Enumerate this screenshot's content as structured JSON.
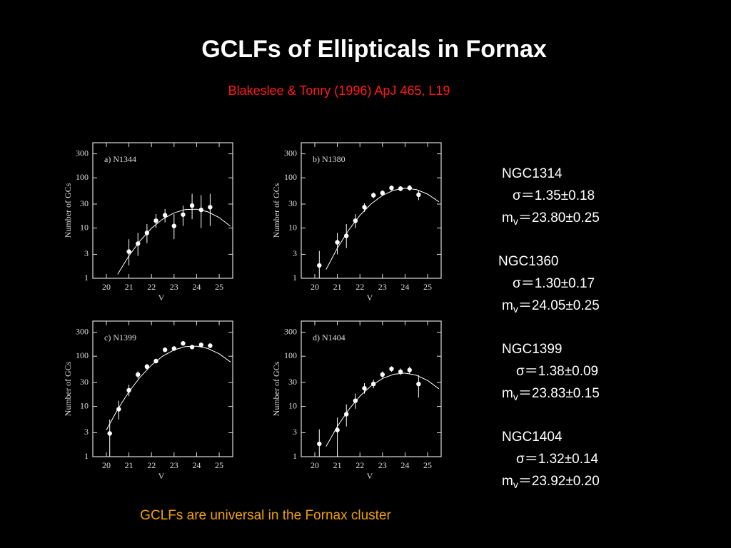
{
  "slide": {
    "title": "GCLFs of Ellipticals in Fornax",
    "citation": "Blakeslee & Tonry (1996) ApJ 465, L19",
    "footer": "GCLFs are universal in the Fornax cluster",
    "stats": [
      {
        "name": "NGC1314",
        "sigma": "σ＝1.35±0.18",
        "m_label": "m",
        "m_sub": "v",
        "m_value": "＝23.80±0.25"
      },
      {
        "name": "NGC1360",
        "sigma": "σ＝1.30±0.17",
        "m_label": "m",
        "m_sub": "v",
        "m_value": "＝24.05±0.25"
      },
      {
        "name": "NGC1399",
        "sigma": "σ＝1.38±0.09",
        "m_label": "m",
        "m_sub": "v",
        "m_value": "＝23.83±0.15"
      },
      {
        "name": "NGC1404",
        "sigma": "σ＝1.32±0.14",
        "m_label": "m",
        "m_sub": "v",
        "m_value": "＝23.92±0.20"
      }
    ]
  },
  "chart_data": [
    {
      "type": "scatter",
      "title": "a) N1344",
      "x_label": "V",
      "y_label": "Number of GCs",
      "color": "#ffffff",
      "xlim": [
        19.4,
        25.6
      ],
      "ylim": [
        1,
        500
      ],
      "yscale": "log",
      "xticks": [
        20,
        21,
        22,
        23,
        24,
        25
      ],
      "yticks": [
        1,
        3,
        10,
        30,
        100,
        300
      ],
      "x": [
        21.0,
        21.4,
        21.8,
        22.2,
        22.6,
        23.0,
        23.4,
        23.8,
        24.2,
        24.6
      ],
      "values": [
        3.4,
        4.9,
        8,
        14,
        18,
        11,
        18.5,
        28,
        23,
        26
      ],
      "ylow": [
        1.8,
        2.8,
        5,
        10,
        13,
        6,
        11,
        15,
        10,
        11
      ],
      "yhigh": [
        6,
        8,
        12,
        19,
        24,
        19,
        28,
        48,
        45,
        48
      ],
      "fit": {
        "x": [
          20.5,
          21,
          21.5,
          22,
          22.5,
          23,
          23.5,
          24,
          24.5,
          25,
          25.5
        ],
        "values": [
          1.2,
          2.8,
          5.6,
          9.9,
          15.1,
          20.1,
          23.4,
          23.7,
          21.0,
          16.2,
          10.9
        ]
      }
    },
    {
      "type": "scatter",
      "title": "b) N1380",
      "x_label": "V",
      "y_label": "Number of GCs",
      "color": "#ffffff",
      "xlim": [
        19.4,
        25.6
      ],
      "ylim": [
        1,
        500
      ],
      "yscale": "log",
      "xticks": [
        20,
        21,
        22,
        23,
        24,
        25
      ],
      "yticks": [
        1,
        3,
        10,
        30,
        100,
        300
      ],
      "x": [
        20.2,
        21.0,
        21.4,
        21.8,
        22.2,
        22.6,
        23.0,
        23.4,
        23.8,
        24.2,
        24.6
      ],
      "values": [
        1.8,
        5.2,
        7,
        14,
        26,
        45,
        50,
        63,
        61,
        63,
        46
      ],
      "ylow": [
        0.9,
        3,
        4,
        10,
        21,
        39,
        44,
        56,
        54,
        56,
        36
      ],
      "yhigh": [
        3.5,
        8,
        12,
        19,
        31,
        51,
        57,
        70,
        68,
        72,
        55
      ],
      "fit": {
        "x": [
          20.5,
          21,
          21.5,
          22,
          22.5,
          23,
          23.5,
          24,
          24.5,
          25,
          25.5
        ],
        "values": [
          1.5,
          4.0,
          9.1,
          17.9,
          30.4,
          44.8,
          56.7,
          62.0,
          58.4,
          47.5,
          33.3
        ]
      }
    },
    {
      "type": "scatter",
      "title": "c) N1399",
      "x_label": "V",
      "y_label": "Number of GCs",
      "color": "#ffffff",
      "xlim": [
        19.4,
        25.6
      ],
      "ylim": [
        1,
        500
      ],
      "yscale": "log",
      "xticks": [
        20,
        21,
        22,
        23,
        24,
        25
      ],
      "yticks": [
        1,
        3,
        10,
        30,
        100,
        300
      ],
      "x": [
        20.15,
        20.55,
        21.0,
        21.4,
        21.8,
        22.2,
        22.6,
        23.0,
        23.4,
        23.8,
        24.2,
        24.6
      ],
      "values": [
        2.9,
        8.8,
        21,
        43,
        62,
        80,
        134,
        142,
        180,
        152,
        168,
        162
      ],
      "ylow": [
        1,
        5.5,
        16,
        36,
        54,
        72,
        122,
        130,
        165,
        138,
        150,
        145
      ],
      "yhigh": [
        5.5,
        13,
        27,
        50,
        70,
        90,
        146,
        156,
        196,
        166,
        186,
        180
      ],
      "fit": {
        "x": [
          20,
          20.5,
          21,
          21.5,
          22,
          22.5,
          23,
          23.5,
          24,
          24.5,
          25,
          25.5
        ],
        "values": [
          3.4,
          8.7,
          19.6,
          38.5,
          66.4,
          100.6,
          133.5,
          155.5,
          158.8,
          142.3,
          111.7,
          77.0
        ]
      }
    },
    {
      "type": "scatter",
      "title": "d) N1404",
      "x_label": "V",
      "y_label": "Number of GCs",
      "color": "#ffffff",
      "xlim": [
        19.4,
        25.6
      ],
      "ylim": [
        1,
        500
      ],
      "yscale": "log",
      "xticks": [
        20,
        21,
        22,
        23,
        24,
        25
      ],
      "yticks": [
        1,
        3,
        10,
        30,
        100,
        300
      ],
      "x": [
        20.2,
        21.0,
        21.4,
        21.8,
        22.2,
        22.6,
        23.0,
        23.4,
        23.8,
        24.2,
        24.6
      ],
      "values": [
        1.8,
        3.4,
        7,
        13,
        23,
        28,
        43,
        56,
        49,
        53,
        28
      ],
      "ylow": [
        0.9,
        1,
        4,
        9,
        18,
        23,
        37,
        49,
        42,
        45,
        15
      ],
      "yhigh": [
        3.5,
        6,
        11,
        18,
        29,
        34,
        50,
        63,
        57,
        62,
        42
      ],
      "fit": {
        "x": [
          20.5,
          21,
          21.5,
          22,
          22.5,
          23,
          23.5,
          24,
          24.5,
          25,
          25.5
        ],
        "values": [
          1.6,
          4.0,
          8.6,
          16.0,
          25.8,
          36.1,
          43.7,
          46.0,
          41.8,
          32.9,
          22.5
        ]
      }
    }
  ]
}
